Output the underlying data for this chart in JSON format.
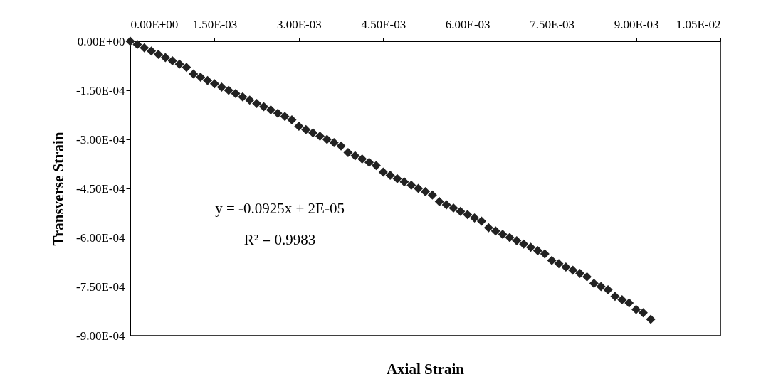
{
  "chart_data": {
    "type": "scatter",
    "xlabel": "Axial Strain",
    "ylabel": "Transverse Strain",
    "x": [
      0,
      0.000125,
      0.00025,
      0.000375,
      0.0005,
      0.000625,
      0.00075,
      0.000875,
      0.001,
      0.001125,
      0.00125,
      0.001375,
      0.0015,
      0.001625,
      0.00175,
      0.001875,
      0.002,
      0.002125,
      0.00225,
      0.002375,
      0.0025,
      0.002625,
      0.00275,
      0.002875,
      0.003,
      0.003125,
      0.00325,
      0.003375,
      0.0035,
      0.003625,
      0.00375,
      0.003875,
      0.004,
      0.004125,
      0.00425,
      0.004375,
      0.0045,
      0.004625,
      0.00475,
      0.004875,
      0.005,
      0.005125,
      0.00525,
      0.005375,
      0.0055,
      0.005625,
      0.00575,
      0.005875,
      0.006,
      0.006125,
      0.00625,
      0.006375,
      0.0065,
      0.006625,
      0.00675,
      0.006875,
      0.007,
      0.007125,
      0.00725,
      0.007375,
      0.0075,
      0.007625,
      0.00775,
      0.007875,
      0.008,
      0.008125,
      0.00825,
      0.008375,
      0.0085,
      0.008625,
      0.00875,
      0.008875,
      0.009,
      0.009125,
      0.00926
    ],
    "series": [
      {
        "color": "#222222",
        "marker": "diamond",
        "values": [
          0,
          -1e-05,
          -2e-05,
          -3e-05,
          -4e-05,
          -5e-05,
          -6e-05,
          -7e-05,
          -8e-05,
          -0.0001,
          -0.00011,
          -0.00012,
          -0.00013,
          -0.00014,
          -0.00015,
          -0.00016,
          -0.00017,
          -0.00018,
          -0.00019,
          -0.0002,
          -0.00021,
          -0.00022,
          -0.00023,
          -0.00024,
          -0.00026,
          -0.00027,
          -0.00028,
          -0.00029,
          -0.0003,
          -0.00031,
          -0.00032,
          -0.00034,
          -0.00035,
          -0.00036,
          -0.00037,
          -0.00038,
          -0.0004,
          -0.00041,
          -0.00042,
          -0.00043,
          -0.00044,
          -0.00045,
          -0.00046,
          -0.00047,
          -0.00049,
          -0.0005,
          -0.00051,
          -0.00052,
          -0.00053,
          -0.00054,
          -0.00055,
          -0.00057,
          -0.00058,
          -0.00059,
          -0.0006,
          -0.00061,
          -0.00062,
          -0.00063,
          -0.00064,
          -0.00065,
          -0.00067,
          -0.00068,
          -0.00069,
          -0.0007,
          -0.00071,
          -0.00072,
          -0.00074,
          -0.00075,
          -0.00076,
          -0.00078,
          -0.00079,
          -0.0008,
          -0.00082,
          -0.00083,
          -0.00085
        ]
      }
    ],
    "xlim": [
      0,
      0.0105
    ],
    "xticks": [
      {
        "value": 0,
        "label": "0.00E+00"
      },
      {
        "value": 0.0015,
        "label": "1.50E-03"
      },
      {
        "value": 0.003,
        "label": "3.00E-03"
      },
      {
        "value": 0.0045,
        "label": "4.50E-03"
      },
      {
        "value": 0.006,
        "label": "6.00E-03"
      },
      {
        "value": 0.0075,
        "label": "7.50E-03"
      },
      {
        "value": 0.009,
        "label": "9.00E-03"
      },
      {
        "value": 0.0105,
        "label": "1.05E-02"
      }
    ],
    "ylim": [
      -0.0009,
      0
    ],
    "yticks": [
      {
        "value": 0,
        "label": "0.00E+00"
      },
      {
        "value": -0.00015,
        "label": "-1.50E-04"
      },
      {
        "value": -0.0003,
        "label": "-3.00E-04"
      },
      {
        "value": -0.00045,
        "label": "-4.50E-04"
      },
      {
        "value": -0.0006,
        "label": "-6.00E-04"
      },
      {
        "value": -0.00075,
        "label": "-7.50E-04"
      },
      {
        "value": -0.0009,
        "label": "-9.00E-04"
      }
    ],
    "annotations": [
      "y = -0.0925x + 2E-05",
      "R² = 0.9983"
    ],
    "grid": false
  }
}
